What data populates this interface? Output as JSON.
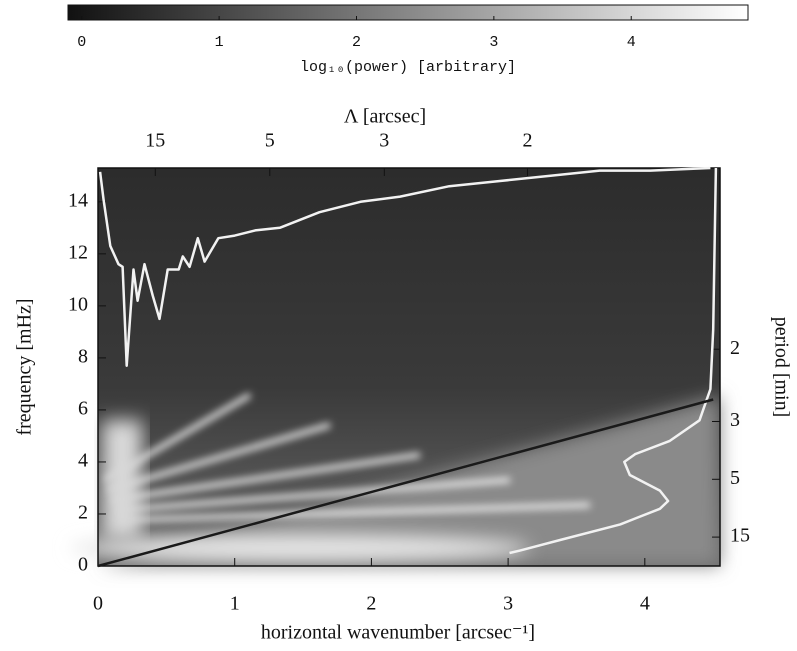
{
  "chart_data": {
    "type": "line",
    "xlabel": "horizontal wavenumber [arcsec⁻¹]",
    "ylabel": "frequency [mHz]",
    "x2label": "Λ [arcsec]",
    "y2label": "period [min]",
    "xlim": [
      0,
      4.55
    ],
    "ylim": [
      0,
      15.3
    ],
    "xticks": [
      0,
      1,
      2,
      3,
      4
    ],
    "yticks": [
      0,
      2,
      4,
      6,
      8,
      10,
      12,
      14
    ],
    "x2ticks": [
      15,
      5,
      3,
      2
    ],
    "y2ticks": [
      2,
      3,
      5,
      15
    ],
    "colorbar": {
      "label": "log₁₀(power) [arbitrary]",
      "lim": [
        -0.1,
        4.85
      ],
      "ticks": [
        0,
        1,
        2,
        3,
        4
      ],
      "colors": [
        "#111111",
        "#ffffff"
      ]
    },
    "series": [
      {
        "color": "#f2f2f2",
        "x": [
          0.015,
          0.04,
          0.09,
          0.15,
          0.18,
          0.21,
          0.26,
          0.29,
          0.34,
          0.4,
          0.45,
          0.51,
          0.59,
          0.62,
          0.67,
          0.73,
          0.78,
          0.88,
          1.0,
          1.15,
          1.33,
          1.62,
          1.92,
          2.21,
          2.57,
          2.94,
          3.31,
          3.67,
          4.04,
          4.48
        ],
        "values": [
          15.15,
          14.1,
          12.3,
          11.6,
          11.5,
          7.7,
          11.4,
          10.2,
          11.6,
          10.4,
          9.5,
          11.4,
          11.4,
          11.9,
          11.5,
          12.6,
          11.7,
          12.6,
          12.7,
          12.9,
          13.0,
          13.6,
          14.0,
          14.2,
          14.6,
          14.8,
          15.0,
          15.2,
          15.2,
          15.3
        ]
      },
      {
        "color": "#f2f2f2",
        "x": [
          4.52,
          4.5,
          4.48,
          4.4,
          4.18,
          3.93,
          3.85,
          3.89,
          4.11,
          4.17,
          4.11,
          3.82,
          3.38,
          3.09,
          3.01
        ],
        "values": [
          15.3,
          9.1,
          6.8,
          5.6,
          4.8,
          4.3,
          4.0,
          3.5,
          2.9,
          2.5,
          2.2,
          1.6,
          1.0,
          0.6,
          0.5
        ]
      },
      {
        "color": "#1a1a1a",
        "x": [
          0,
          4.5
        ],
        "values": [
          0,
          6.4
        ]
      }
    ]
  }
}
